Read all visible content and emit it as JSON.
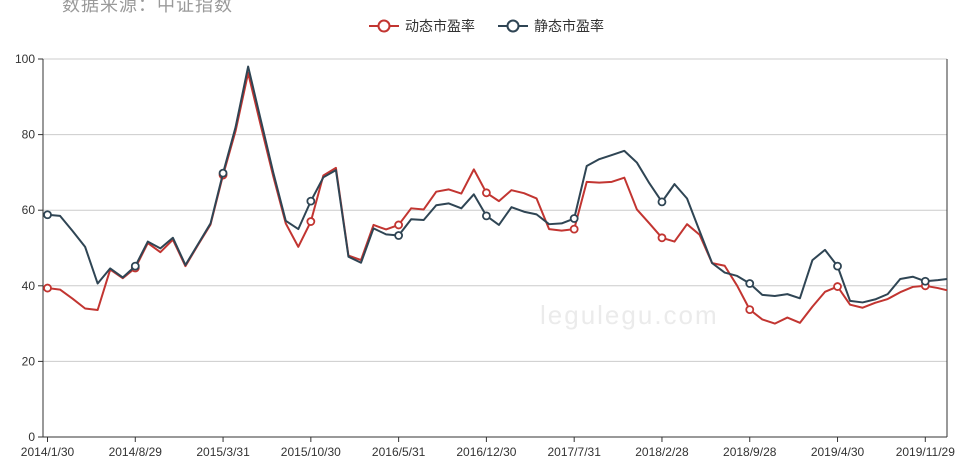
{
  "source_note": "数据来源：中证指数",
  "watermark": "legulegu.com",
  "legend": {
    "items": [
      {
        "label": "动态市盈率",
        "color": "#c23531"
      },
      {
        "label": "静态市盈率",
        "color": "#2f4554"
      }
    ]
  },
  "colors": {
    "dynamic_pe": "#c23531",
    "static_pe": "#2f4554",
    "axis": "#333333",
    "grid": "#cccccc",
    "tick_label": "#333333",
    "source_note": "#9a9a9a",
    "watermark": "#ebebeb",
    "background": "#ffffff"
  },
  "chart_data": {
    "type": "line",
    "title": "",
    "xlabel": "",
    "ylabel": "",
    "ylim": [
      0,
      100
    ],
    "y_ticks": [
      0,
      20,
      40,
      60,
      80,
      100
    ],
    "grid": "horizontal gridlines at y ticks, legend top-center, markers hollow circles at labeled tick points",
    "n_points": 73,
    "x_tick_indices": [
      0,
      7,
      14,
      21,
      28,
      35,
      42,
      49,
      56,
      63,
      70
    ],
    "x_tick_labels": [
      "2014/1/30",
      "2014/8/29",
      "2015/3/31",
      "2015/10/30",
      "2016/5/31",
      "2016/12/30",
      "2017/7/31",
      "2018/2/28",
      "2018/9/28",
      "2019/4/30",
      "2019/11/29"
    ],
    "marker_indices": [
      0,
      7,
      14,
      21,
      28,
      35,
      42,
      49,
      56,
      63,
      70
    ],
    "series": [
      {
        "name": "动态市盈率",
        "color": "#c23531",
        "values": [
          39.4,
          39.0,
          36.6,
          34.0,
          33.6,
          44.3,
          42.0,
          44.7,
          51.3,
          48.9,
          52.2,
          45.2,
          50.8,
          56.2,
          69.3,
          81.0,
          96.3,
          82.5,
          69.0,
          56.5,
          50.3,
          57.0,
          69.2,
          71.2,
          48.0,
          46.8,
          56.1,
          54.9,
          56.1,
          60.5,
          60.2,
          64.9,
          65.5,
          64.4,
          70.8,
          64.6,
          62.4,
          65.3,
          64.5,
          63.1,
          55.0,
          54.6,
          55.0,
          67.5,
          67.3,
          67.5,
          68.6,
          60.2,
          56.5,
          52.7,
          51.7,
          56.3,
          53.5,
          46.0,
          45.3,
          40.0,
          33.7,
          31.1,
          30.0,
          31.6,
          30.2,
          34.5,
          38.4,
          39.8,
          35.0,
          34.2,
          35.5,
          36.5,
          38.3,
          39.7,
          40.0,
          39.4,
          38.6
        ]
      },
      {
        "name": "静态市盈率",
        "color": "#2f4554",
        "values": [
          58.8,
          58.5,
          54.5,
          50.3,
          40.6,
          44.6,
          42.2,
          45.2,
          51.7,
          49.9,
          52.7,
          45.5,
          51.0,
          56.5,
          69.8,
          82.0,
          98.0,
          84.0,
          70.0,
          57.2,
          55.0,
          62.4,
          68.7,
          70.6,
          47.7,
          46.1,
          55.2,
          53.6,
          53.3,
          57.6,
          57.4,
          61.3,
          61.8,
          60.5,
          64.2,
          58.5,
          56.1,
          60.8,
          59.6,
          58.9,
          56.3,
          56.5,
          57.8,
          71.7,
          73.5,
          74.6,
          75.7,
          72.6,
          67.1,
          62.2,
          66.9,
          63.1,
          54.5,
          46.0,
          43.5,
          42.6,
          40.6,
          37.6,
          37.3,
          37.8,
          36.7,
          46.8,
          49.5,
          45.2,
          36.0,
          35.6,
          36.4,
          37.8,
          41.8,
          42.4,
          41.2,
          41.5,
          41.9
        ]
      }
    ]
  }
}
